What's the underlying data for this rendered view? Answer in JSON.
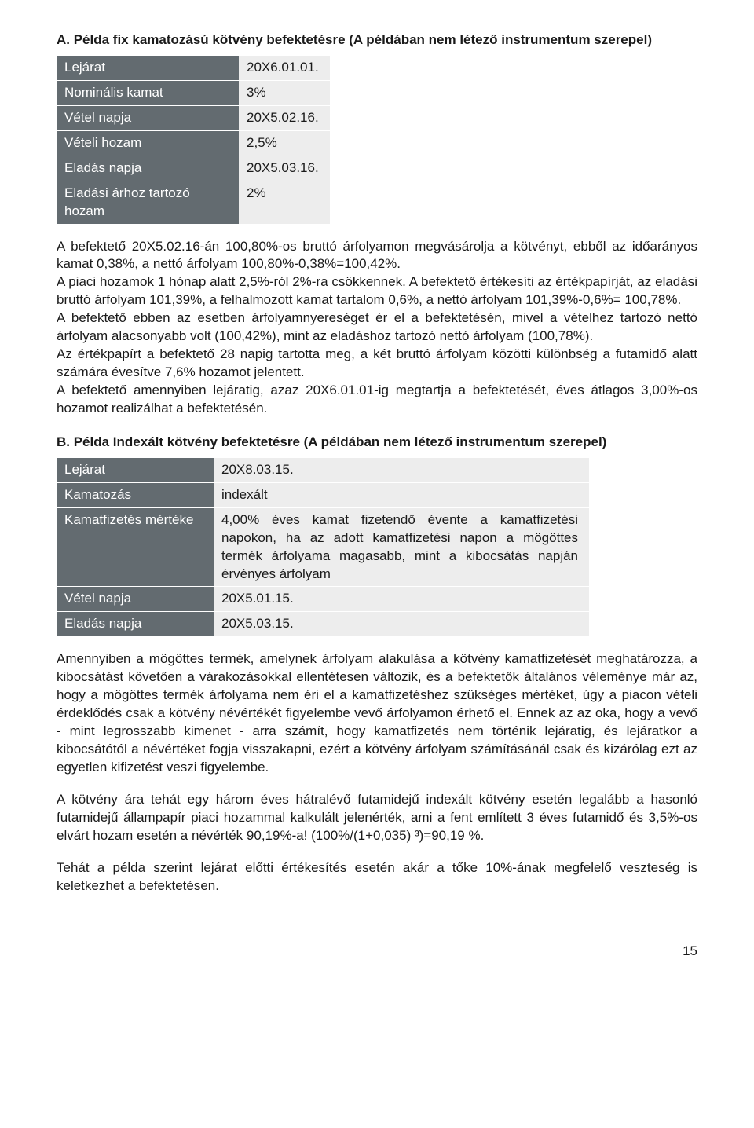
{
  "sectionA": {
    "title": "A. Példa fix kamatozású kötvény befektetésre (A példában nem létező instrumentum szerepel)",
    "rows": [
      {
        "key": "Lejárat",
        "val": "20X6.01.01."
      },
      {
        "key": "Nominális kamat",
        "val": "3%"
      },
      {
        "key": "Vétel napja",
        "val": "20X5.02.16."
      },
      {
        "key": "Vételi hozam",
        "val": "2,5%"
      },
      {
        "key": "Eladás napja",
        "val": "20X5.03.16."
      },
      {
        "key": "Eladási árhoz tartozó hozam",
        "val": "2%"
      }
    ],
    "para": "A befektető 20X5.02.16-án 100,80%-os bruttó árfolyamon megvásárolja a kötvényt, ebből az időarányos kamat 0,38%, a nettó árfolyam 100,80%-0,38%=100,42%.\nA piaci hozamok 1 hónap alatt 2,5%-ról 2%-ra csökkennek. A befektető értékesíti az értékpapírját, az eladási bruttó árfolyam 101,39%, a felhalmozott kamat tartalom 0,6%, a nettó árfolyam 101,39%-0,6%= 100,78%.\nA befektető ebben az esetben árfolyamnyereséget ér el a befektetésén, mivel a vételhez tartozó nettó árfolyam alacsonyabb volt (100,42%), mint az eladáshoz tartozó nettó árfolyam (100,78%).\nAz értékpapírt a befektető 28 napig tartotta meg, a két bruttó árfolyam közötti különbség a futamidő alatt számára évesítve 7,6% hozamot jelentett.\nA befektető amennyiben lejáratig, azaz 20X6.01.01-ig megtartja a befektetését, éves átlagos 3,00%-os hozamot realizálhat a befektetésén."
  },
  "sectionB": {
    "title": "B. Példa Indexált kötvény befektetésre (A példában nem létező instrumentum szerepel)",
    "rows": [
      {
        "key": "Lejárat",
        "val": "20X8.03.15."
      },
      {
        "key": "Kamatozás",
        "val": "indexált"
      },
      {
        "key": "Kamatfizetés mértéke",
        "val": "4,00% éves kamat fizetendő évente a kamatfizetési napokon, ha az adott kamatfizetési napon a mögöttes termék árfolyama magasabb, mint a kibocsátás napján érvényes árfolyam"
      },
      {
        "key": "Vétel napja",
        "val": "20X5.01.15."
      },
      {
        "key": "Eladás napja",
        "val": "20X5.03.15."
      }
    ],
    "para1": "Amennyiben a mögöttes termék, amelynek árfolyam alakulása a kötvény kamatfizetését meghatározza, a kibocsátást követően a várakozásokkal ellentétesen változik, és a befektetők általános véleménye már az, hogy a mögöttes termék árfolyama nem éri el a kamatfizetéshez szükséges mértéket, úgy a piacon vételi érdeklődés csak a kötvény névértékét figyelembe vevő árfolyamon érhető el. Ennek az az oka, hogy a vevő - mint legrosszabb kimenet - arra számít, hogy kamatfizetés nem történik lejáratig, és lejáratkor a kibocsátótól a névértéket fogja visszakapni, ezért a kötvény árfolyam számításánál csak és kizárólag ezt az egyetlen kifizetést veszi figyelembe.",
    "para2": "A kötvény ára tehát egy három éves hátralévő futamidejű indexált kötvény esetén legalább a hasonló futamidejű állampapír piaci hozammal kalkulált jelenérték, ami a fent említett 3 éves futamidő és 3,5%-os elvárt hozam esetén a névérték 90,19%-a!  (100%/(1+0,035) ³)=90,19 %.",
    "para3": "Tehát a példa szerint lejárat előtti értékesítés esetén akár a tőke 10%-ának megfelelő veszteség is keletkezhet a befektetésen."
  },
  "pageNumber": "15"
}
